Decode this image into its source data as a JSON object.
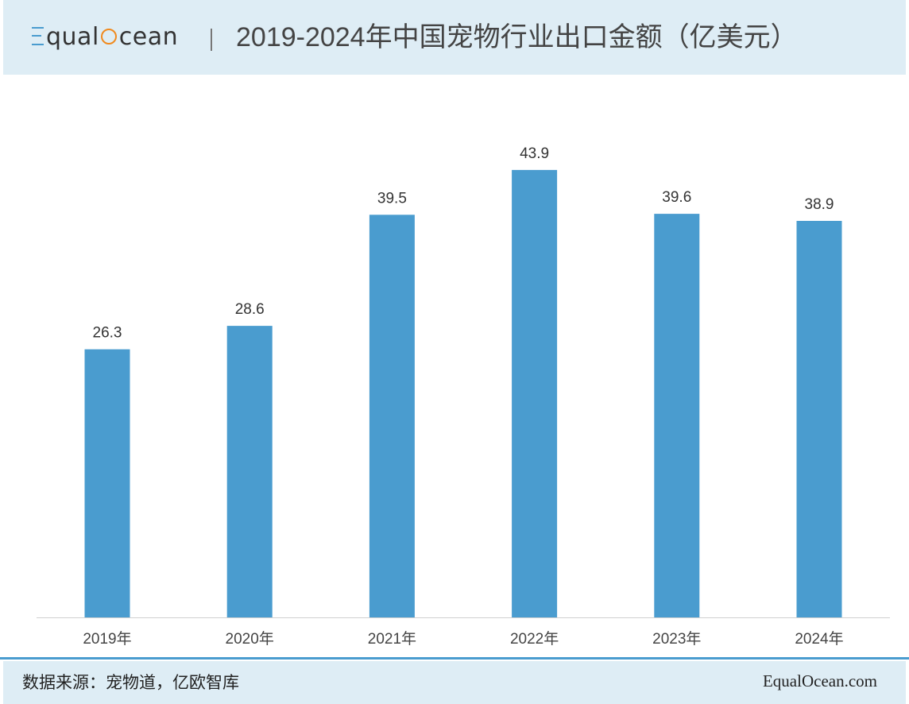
{
  "header": {
    "logo_text_1": "qual",
    "logo_text_2": "cean",
    "title": "2019-2024年中国宠物行业出口金额（亿美元）"
  },
  "chart_data": {
    "type": "bar",
    "title": "2019-2024年中国宠物行业出口金额（亿美元）",
    "unit": "亿美元",
    "categories": [
      "2019年",
      "2020年",
      "2021年",
      "2022年",
      "2023年",
      "2024年"
    ],
    "values": [
      26.3,
      28.6,
      39.5,
      43.9,
      39.6,
      38.9
    ],
    "ylim": [
      0,
      50
    ],
    "grid": false,
    "legend": "none",
    "bar_color": "#4a9ccf"
  },
  "footer": {
    "source": "数据来源：宠物道，亿欧智库",
    "site": "EqualOcean.com"
  },
  "colors": {
    "accent": "#4a9ccf",
    "logo_orange": "#f08a1e",
    "band": "#deedf5"
  }
}
